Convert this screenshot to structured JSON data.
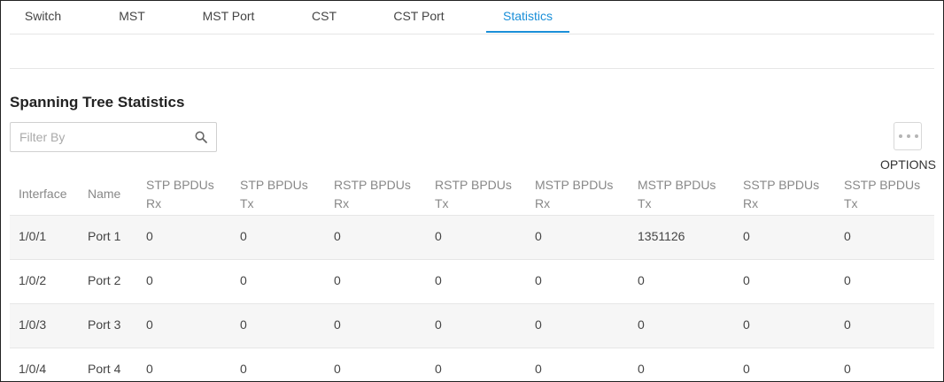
{
  "tabs": [
    {
      "label": "Switch",
      "active": false
    },
    {
      "label": "MST",
      "active": false
    },
    {
      "label": "MST Port",
      "active": false
    },
    {
      "label": "CST",
      "active": false
    },
    {
      "label": "CST Port",
      "active": false
    },
    {
      "label": "Statistics",
      "active": true
    }
  ],
  "section": {
    "title": "Spanning Tree Statistics"
  },
  "filter": {
    "placeholder": "Filter By",
    "value": "",
    "icon": "search-icon"
  },
  "options": {
    "label": "OPTIONS",
    "icon": "more-horizontal-icon"
  },
  "colors": {
    "accent": "#1a8fd8",
    "stripe": "#f6f6f6"
  },
  "table": {
    "headers": [
      {
        "line1": "Interface",
        "line2": ""
      },
      {
        "line1": "Name",
        "line2": ""
      },
      {
        "line1": "STP BPDUs",
        "line2": "Rx"
      },
      {
        "line1": "STP BPDUs",
        "line2": "Tx"
      },
      {
        "line1": "RSTP BPDUs",
        "line2": "Rx"
      },
      {
        "line1": "RSTP BPDUs",
        "line2": "Tx"
      },
      {
        "line1": "MSTP BPDUs",
        "line2": "Rx"
      },
      {
        "line1": "MSTP BPDUs",
        "line2": "Tx"
      },
      {
        "line1": "SSTP BPDUs",
        "line2": "Rx"
      },
      {
        "line1": "SSTP BPDUs",
        "line2": "Tx"
      }
    ],
    "rows": [
      [
        "1/0/1",
        "Port 1",
        "0",
        "0",
        "0",
        "0",
        "0",
        "1351126",
        "0",
        "0"
      ],
      [
        "1/0/2",
        "Port 2",
        "0",
        "0",
        "0",
        "0",
        "0",
        "0",
        "0",
        "0"
      ],
      [
        "1/0/3",
        "Port 3",
        "0",
        "0",
        "0",
        "0",
        "0",
        "0",
        "0",
        "0"
      ],
      [
        "1/0/4",
        "Port 4",
        "0",
        "0",
        "0",
        "0",
        "0",
        "0",
        "0",
        "0"
      ]
    ]
  }
}
